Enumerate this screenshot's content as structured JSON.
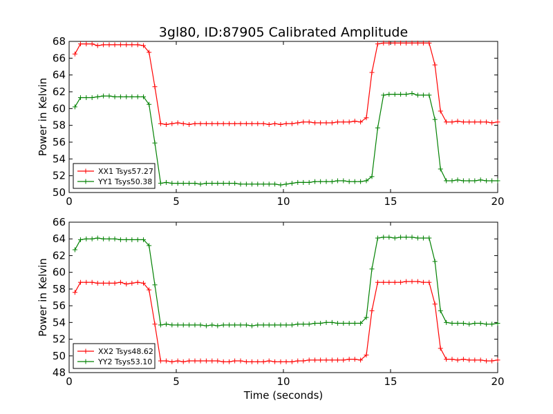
{
  "title": "3gl80, ID:87905 Calibrated Amplitude",
  "xlabel": "Time (seconds)",
  "chart_data": [
    {
      "type": "line",
      "ylabel": "Power in Kelvin",
      "xlim": [
        0,
        20
      ],
      "ylim": [
        50,
        68
      ],
      "xticks": [
        0,
        5,
        10,
        15,
        20
      ],
      "yticks": [
        50,
        52,
        54,
        56,
        58,
        60,
        62,
        64,
        66,
        68
      ],
      "legend_position": "lower-left",
      "x": [
        0.27,
        0.53,
        0.8,
        1.07,
        1.33,
        1.6,
        1.87,
        2.13,
        2.4,
        2.67,
        2.93,
        3.2,
        3.47,
        3.73,
        4.0,
        4.27,
        4.53,
        4.8,
        5.07,
        5.33,
        5.6,
        5.87,
        6.13,
        6.4,
        6.67,
        6.93,
        7.2,
        7.47,
        7.73,
        8.0,
        8.27,
        8.53,
        8.8,
        9.07,
        9.33,
        9.6,
        9.87,
        10.13,
        10.4,
        10.67,
        10.93,
        11.2,
        11.47,
        11.73,
        12.0,
        12.27,
        12.53,
        12.8,
        13.07,
        13.33,
        13.6,
        13.87,
        14.13,
        14.4,
        14.67,
        14.93,
        15.2,
        15.47,
        15.73,
        16.0,
        16.27,
        16.53,
        16.8,
        17.07,
        17.33,
        17.6,
        17.87,
        18.13,
        18.4,
        18.67,
        18.93,
        19.2,
        19.47,
        19.73,
        20.0
      ],
      "series": [
        {
          "name": "XX1 Tsys57.27",
          "color": "#ff0000",
          "values": [
            66.5,
            67.7,
            67.7,
            67.7,
            67.5,
            67.6,
            67.6,
            67.6,
            67.6,
            67.6,
            67.6,
            67.6,
            67.5,
            66.7,
            62.6,
            58.2,
            58.1,
            58.2,
            58.3,
            58.2,
            58.1,
            58.2,
            58.2,
            58.2,
            58.2,
            58.2,
            58.2,
            58.2,
            58.2,
            58.2,
            58.2,
            58.2,
            58.2,
            58.2,
            58.1,
            58.2,
            58.1,
            58.2,
            58.2,
            58.3,
            58.4,
            58.4,
            58.3,
            58.3,
            58.3,
            58.3,
            58.4,
            58.4,
            58.4,
            58.5,
            58.4,
            58.9,
            64.3,
            67.7,
            67.8,
            67.8,
            67.8,
            67.8,
            67.8,
            67.8,
            67.8,
            67.8,
            67.8,
            65.2,
            59.7,
            58.4,
            58.4,
            58.5,
            58.4,
            58.4,
            58.4,
            58.4,
            58.4,
            58.3,
            58.4
          ]
        },
        {
          "name": "YY1 Tsys50.38",
          "color": "#008000",
          "values": [
            60.2,
            61.3,
            61.3,
            61.3,
            61.4,
            61.5,
            61.5,
            61.4,
            61.4,
            61.4,
            61.4,
            61.4,
            61.4,
            60.5,
            55.9,
            51.1,
            51.2,
            51.1,
            51.1,
            51.1,
            51.1,
            51.1,
            51.0,
            51.1,
            51.1,
            51.1,
            51.1,
            51.1,
            51.1,
            51.0,
            51.0,
            51.0,
            51.0,
            51.0,
            51.0,
            51.0,
            50.9,
            51.0,
            51.1,
            51.2,
            51.2,
            51.2,
            51.3,
            51.3,
            51.3,
            51.3,
            51.4,
            51.4,
            51.3,
            51.3,
            51.3,
            51.4,
            51.9,
            57.7,
            61.6,
            61.7,
            61.7,
            61.7,
            61.7,
            61.8,
            61.6,
            61.6,
            61.6,
            58.7,
            52.8,
            51.4,
            51.4,
            51.5,
            51.4,
            51.4,
            51.4,
            51.5,
            51.4,
            51.4,
            51.4
          ]
        }
      ]
    },
    {
      "type": "line",
      "ylabel": "Power in Kelvin",
      "xlim": [
        0,
        20
      ],
      "ylim": [
        48,
        66
      ],
      "xticks": [
        0,
        5,
        10,
        15,
        20
      ],
      "yticks": [
        48,
        50,
        52,
        54,
        56,
        58,
        60,
        62,
        64,
        66
      ],
      "legend_position": "lower-left",
      "x": [
        0.27,
        0.53,
        0.8,
        1.07,
        1.33,
        1.6,
        1.87,
        2.13,
        2.4,
        2.67,
        2.93,
        3.2,
        3.47,
        3.73,
        4.0,
        4.27,
        4.53,
        4.8,
        5.07,
        5.33,
        5.6,
        5.87,
        6.13,
        6.4,
        6.67,
        6.93,
        7.2,
        7.47,
        7.73,
        8.0,
        8.27,
        8.53,
        8.8,
        9.07,
        9.33,
        9.6,
        9.87,
        10.13,
        10.4,
        10.67,
        10.93,
        11.2,
        11.47,
        11.73,
        12.0,
        12.27,
        12.53,
        12.8,
        13.07,
        13.33,
        13.6,
        13.87,
        14.13,
        14.4,
        14.67,
        14.93,
        15.2,
        15.47,
        15.73,
        16.0,
        16.27,
        16.53,
        16.8,
        17.07,
        17.33,
        17.6,
        17.87,
        18.13,
        18.4,
        18.67,
        18.93,
        19.2,
        19.47,
        19.73,
        20.0
      ],
      "series": [
        {
          "name": "XX2 Tsys48.62",
          "color": "#ff0000",
          "values": [
            57.6,
            58.8,
            58.8,
            58.8,
            58.7,
            58.7,
            58.7,
            58.7,
            58.8,
            58.6,
            58.7,
            58.8,
            58.7,
            57.9,
            53.8,
            49.4,
            49.4,
            49.3,
            49.4,
            49.3,
            49.4,
            49.4,
            49.4,
            49.4,
            49.4,
            49.4,
            49.3,
            49.3,
            49.4,
            49.4,
            49.3,
            49.3,
            49.3,
            49.3,
            49.4,
            49.3,
            49.3,
            49.3,
            49.3,
            49.4,
            49.4,
            49.5,
            49.5,
            49.5,
            49.5,
            49.5,
            49.5,
            49.5,
            49.6,
            49.6,
            49.5,
            50.1,
            55.4,
            58.8,
            58.8,
            58.8,
            58.8,
            58.8,
            58.9,
            58.9,
            58.9,
            58.8,
            58.8,
            56.2,
            50.9,
            49.6,
            49.6,
            49.5,
            49.6,
            49.5,
            49.5,
            49.5,
            49.4,
            49.4,
            49.5
          ]
        },
        {
          "name": "YY2 Tsys53.10",
          "color": "#008000",
          "values": [
            62.7,
            63.9,
            64.0,
            64.0,
            64.1,
            64.0,
            64.0,
            64.0,
            63.9,
            63.9,
            63.9,
            63.9,
            63.9,
            63.2,
            58.5,
            53.7,
            53.8,
            53.7,
            53.7,
            53.7,
            53.7,
            53.7,
            53.7,
            53.6,
            53.7,
            53.6,
            53.7,
            53.7,
            53.7,
            53.7,
            53.7,
            53.6,
            53.7,
            53.7,
            53.7,
            53.7,
            53.7,
            53.7,
            53.7,
            53.8,
            53.8,
            53.8,
            53.9,
            53.9,
            54.0,
            54.0,
            53.9,
            53.9,
            53.9,
            53.9,
            53.9,
            54.6,
            60.4,
            64.1,
            64.2,
            64.2,
            64.1,
            64.2,
            64.2,
            64.2,
            64.1,
            64.1,
            64.1,
            61.3,
            55.4,
            54.0,
            53.9,
            53.9,
            53.9,
            53.8,
            53.9,
            53.9,
            53.8,
            53.8,
            53.9
          ]
        }
      ]
    }
  ]
}
